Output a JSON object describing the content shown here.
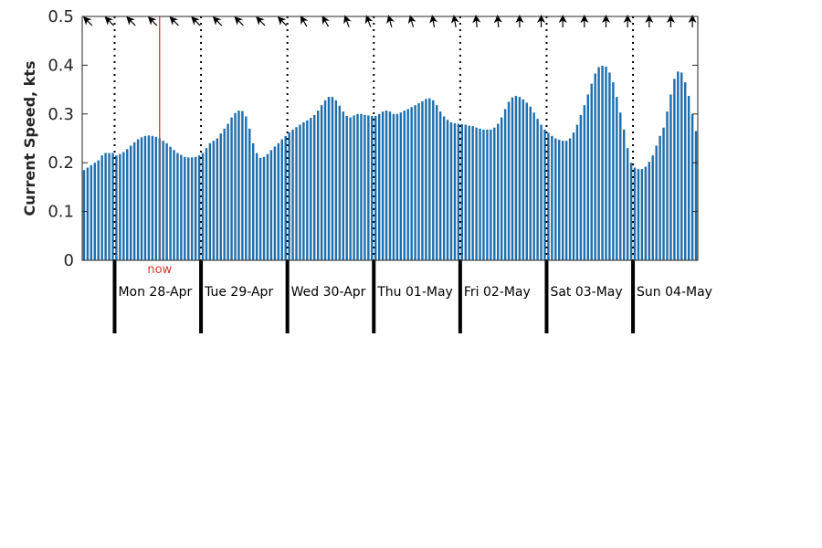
{
  "chart_data": {
    "type": "bar",
    "title": "",
    "xlabel": "",
    "ylabel": "Current Speed, kts",
    "ylim": [
      0,
      0.5
    ],
    "yticks": [
      0,
      0.1,
      0.2,
      0.3,
      0.4,
      0.5
    ],
    "ytick_labels": [
      "0",
      "0.1",
      "0.2",
      "0.3",
      "0.4",
      "0.5"
    ],
    "bar_color": "#1f6fad",
    "now_color": "#e03030",
    "now_label": "now",
    "now_index": 21,
    "interval_hours": 1,
    "values": [
      0.185,
      0.19,
      0.195,
      0.2,
      0.205,
      0.215,
      0.22,
      0.22,
      0.22,
      0.215,
      0.218,
      0.222,
      0.228,
      0.235,
      0.242,
      0.248,
      0.252,
      0.255,
      0.256,
      0.255,
      0.253,
      0.25,
      0.245,
      0.24,
      0.233,
      0.226,
      0.22,
      0.216,
      0.212,
      0.211,
      0.211,
      0.212,
      0.215,
      0.22,
      0.23,
      0.24,
      0.245,
      0.25,
      0.26,
      0.27,
      0.28,
      0.293,
      0.302,
      0.307,
      0.306,
      0.295,
      0.27,
      0.24,
      0.22,
      0.21,
      0.212,
      0.218,
      0.226,
      0.233,
      0.24,
      0.248,
      0.255,
      0.262,
      0.268,
      0.273,
      0.278,
      0.283,
      0.287,
      0.292,
      0.298,
      0.307,
      0.318,
      0.328,
      0.335,
      0.335,
      0.328,
      0.317,
      0.305,
      0.296,
      0.293,
      0.297,
      0.3,
      0.3,
      0.298,
      0.297,
      0.296,
      0.296,
      0.3,
      0.305,
      0.307,
      0.305,
      0.3,
      0.3,
      0.303,
      0.307,
      0.31,
      0.314,
      0.318,
      0.322,
      0.326,
      0.331,
      0.332,
      0.328,
      0.318,
      0.305,
      0.295,
      0.288,
      0.283,
      0.281,
      0.28,
      0.279,
      0.278,
      0.276,
      0.275,
      0.272,
      0.27,
      0.268,
      0.268,
      0.268,
      0.272,
      0.28,
      0.293,
      0.31,
      0.325,
      0.334,
      0.337,
      0.335,
      0.33,
      0.323,
      0.315,
      0.303,
      0.29,
      0.278,
      0.268,
      0.261,
      0.255,
      0.25,
      0.247,
      0.245,
      0.245,
      0.25,
      0.262,
      0.278,
      0.298,
      0.318,
      0.34,
      0.362,
      0.383,
      0.396,
      0.399,
      0.397,
      0.385,
      0.365,
      0.335,
      0.303,
      0.268,
      0.23,
      0.2,
      0.19,
      0.187,
      0.187,
      0.192,
      0.202,
      0.215,
      0.235,
      0.255,
      0.272,
      0.305,
      0.34,
      0.372,
      0.387,
      0.385,
      0.365,
      0.337,
      0.3,
      0.265
    ],
    "days": [
      "Mon 28-Apr",
      "Tue 29-Apr",
      "Wed 30-Apr",
      "Thu 01-May",
      "Fri 02-May",
      "Sat 03-May",
      "Sun 04-May"
    ],
    "day_start_indices": [
      9,
      33,
      57,
      81,
      105,
      129,
      153
    ],
    "direction_arrows": [
      {
        "index": 1,
        "angle": 315
      },
      {
        "index": 7,
        "angle": 315
      },
      {
        "index": 13,
        "angle": 315
      },
      {
        "index": 19,
        "angle": 315
      },
      {
        "index": 25,
        "angle": 315
      },
      {
        "index": 31,
        "angle": 315
      },
      {
        "index": 37,
        "angle": 315
      },
      {
        "index": 43,
        "angle": 315
      },
      {
        "index": 49,
        "angle": 315
      },
      {
        "index": 55,
        "angle": 315
      },
      {
        "index": 61,
        "angle": 330
      },
      {
        "index": 67,
        "angle": 330
      },
      {
        "index": 73,
        "angle": 340
      },
      {
        "index": 79,
        "angle": 340
      },
      {
        "index": 85,
        "angle": 345
      },
      {
        "index": 91,
        "angle": 345
      },
      {
        "index": 97,
        "angle": 350
      },
      {
        "index": 103,
        "angle": 350
      },
      {
        "index": 109,
        "angle": 355
      },
      {
        "index": 115,
        "angle": 355
      },
      {
        "index": 121,
        "angle": 0
      },
      {
        "index": 127,
        "angle": 0
      },
      {
        "index": 133,
        "angle": 0
      },
      {
        "index": 139,
        "angle": 0
      },
      {
        "index": 145,
        "angle": 0
      },
      {
        "index": 151,
        "angle": 0
      },
      {
        "index": 157,
        "angle": 0
      },
      {
        "index": 163,
        "angle": 0
      },
      {
        "index": 169,
        "angle": 0
      }
    ]
  }
}
